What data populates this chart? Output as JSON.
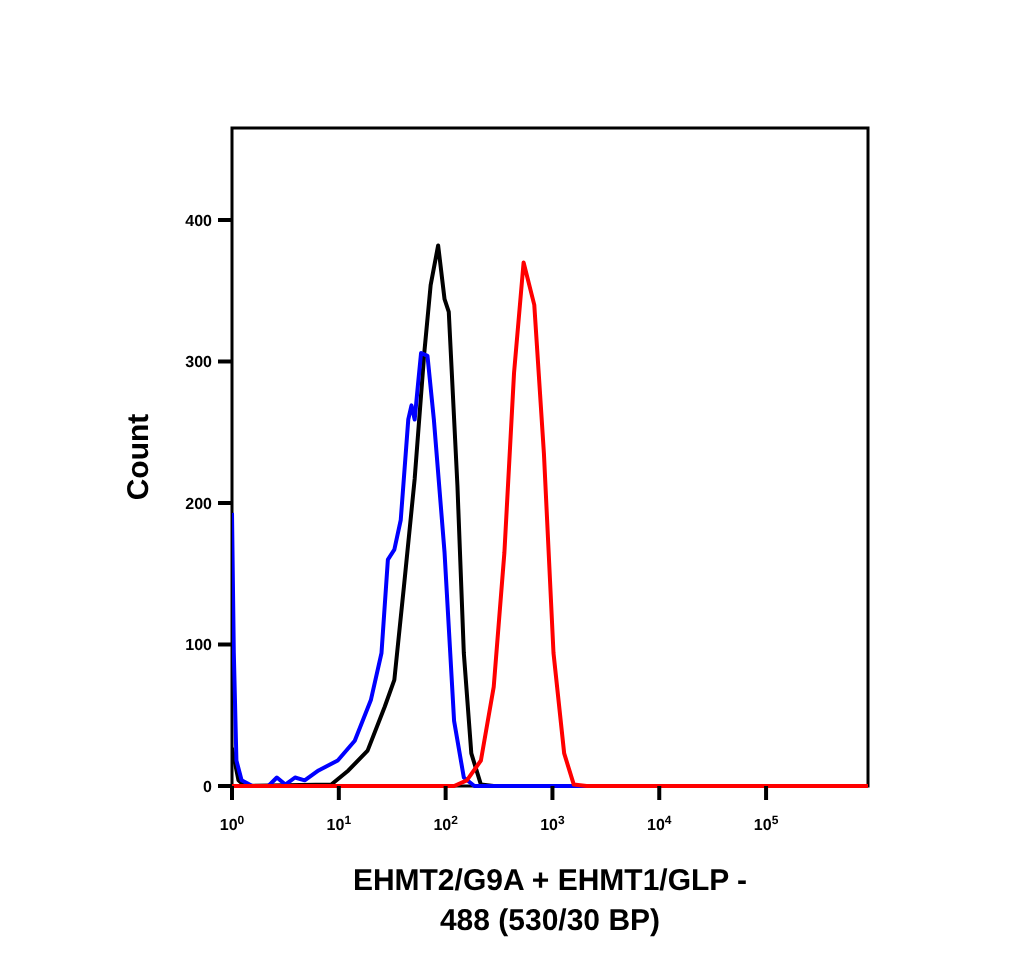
{
  "chart_data": {
    "type": "line",
    "xlabel": "EHMT2/G9A + EHMT1/GLP - 488 (530/30 BP)",
    "ylabel": "Count",
    "log": "x",
    "xlim": [
      1,
      900000
    ],
    "ylim": [
      0,
      465
    ],
    "xticks": [
      {
        "value": 1,
        "label": "10$^{0}$"
      },
      {
        "value": 10,
        "label": "10$^{1}$"
      },
      {
        "value": 100,
        "label": "10$^{2}$"
      },
      {
        "value": 1000,
        "label": "10$^{3}$"
      },
      {
        "value": 10000,
        "label": "10$^{4}$"
      },
      {
        "value": 100000,
        "label": "10$^{5}$"
      }
    ],
    "yticks": [
      0,
      100,
      200,
      300,
      400
    ],
    "grid": false,
    "marker": "none",
    "line_style": "solid",
    "series": [
      {
        "color": "#000000",
        "x": [
          1,
          1.15,
          1.32,
          8.51,
          12.3,
          18.6,
          26.9,
          33.1,
          40.7,
          51.3,
          63.1,
          72.4,
          85.1,
          97.7,
          107,
          129,
          148,
          174,
          214,
          282,
          900000
        ],
        "values": [
          27,
          4,
          0,
          1,
          11,
          25,
          56,
          75,
          141,
          217,
          306,
          354,
          382,
          344,
          335,
          212,
          94,
          23,
          1,
          0,
          0
        ]
      },
      {
        "color": "#0000ff",
        "x": [
          1,
          1.04,
          1.1,
          1.23,
          1.55,
          2.19,
          2.63,
          3.16,
          3.89,
          4.79,
          6.46,
          9.77,
          14.1,
          20,
          25.1,
          28.8,
          33.1,
          38,
          44.7,
          47.9,
          51.3,
          55,
          58.9,
          67.6,
          77.6,
          97.7,
          120,
          148,
          186,
          900000
        ],
        "values": [
          193,
          94,
          18,
          4,
          0,
          0,
          6,
          1,
          6,
          4,
          11,
          18,
          32,
          61,
          94,
          160,
          167,
          188,
          259,
          269,
          259,
          283,
          306,
          304,
          259,
          165,
          46,
          6,
          0,
          0
        ]
      },
      {
        "color": "#ff0000",
        "x": [
          1,
          120,
          158,
          214,
          282,
          355,
          437,
          537,
          676,
          832,
          1023,
          1288,
          1585,
          2089,
          900000
        ],
        "values": [
          0,
          0,
          4,
          18,
          70,
          165,
          292,
          370,
          340,
          235,
          94,
          23,
          1,
          0,
          0
        ]
      }
    ]
  }
}
